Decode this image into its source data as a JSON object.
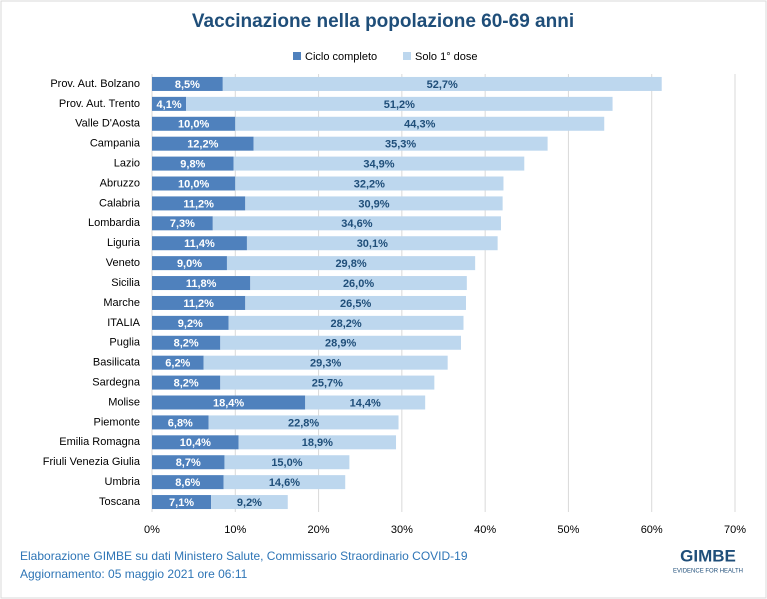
{
  "chart_data": {
    "type": "stacked-bar-horizontal",
    "title": "Vaccinazione nella popolazione 60-69 anni",
    "categories": [
      "Prov. Aut. Bolzano",
      "Prov. Aut. Trento",
      "Valle D'Aosta",
      "Campania",
      "Lazio",
      "Abruzzo",
      "Calabria",
      "Lombardia",
      "Liguria",
      "Veneto",
      "Sicilia",
      "Marche",
      "ITALIA",
      "Puglia",
      "Basilicata",
      "Sardegna",
      "Molise",
      "Piemonte",
      "Emilia Romagna",
      "Friuli Venezia Giulia",
      "Umbria",
      "Toscana"
    ],
    "series": [
      {
        "name": "Ciclo completo",
        "color": "#4f81bd",
        "values": [
          8.5,
          4.1,
          10.0,
          12.2,
          9.8,
          10.0,
          11.2,
          7.3,
          11.4,
          9.0,
          11.8,
          11.2,
          9.2,
          8.2,
          6.2,
          8.2,
          18.4,
          6.8,
          10.4,
          8.7,
          8.6,
          7.1
        ],
        "value_labels": [
          "8,5%",
          "4,1%",
          "10,0%",
          "12,2%",
          "9,8%",
          "10,0%",
          "11,2%",
          "7,3%",
          "11,4%",
          "9,0%",
          "11,8%",
          "11,2%",
          "9,2%",
          "8,2%",
          "6,2%",
          "8,2%",
          "18,4%",
          "6,8%",
          "10,4%",
          "8,7%",
          "8,6%",
          "7,1%"
        ]
      },
      {
        "name": "Solo 1° dose",
        "color": "#bdd7ee",
        "values": [
          52.7,
          51.2,
          44.3,
          35.3,
          34.9,
          32.2,
          30.9,
          34.6,
          30.1,
          29.8,
          26.0,
          26.5,
          28.2,
          28.9,
          29.3,
          25.7,
          14.4,
          22.8,
          18.9,
          15.0,
          14.6,
          9.2
        ],
        "value_labels": [
          "52,7%",
          "51,2%",
          "44,3%",
          "35,3%",
          "34,9%",
          "32,2%",
          "30,9%",
          "34,6%",
          "30,1%",
          "29,8%",
          "26,0%",
          "26,5%",
          "28,2%",
          "28,9%",
          "29,3%",
          "25,7%",
          "14,4%",
          "22,8%",
          "18,9%",
          "15,0%",
          "14,6%",
          "9,2%"
        ]
      }
    ],
    "xlim": [
      0,
      70
    ],
    "xticks": [
      {
        "value": 0,
        "label": "0%"
      },
      {
        "value": 10,
        "label": "10%"
      },
      {
        "value": 20,
        "label": "20%"
      },
      {
        "value": 30,
        "label": "30%"
      },
      {
        "value": 40,
        "label": "40%"
      },
      {
        "value": 50,
        "label": "50%"
      },
      {
        "value": 60,
        "label": "60%"
      },
      {
        "value": 70,
        "label": "70%"
      }
    ],
    "grid": true,
    "legend": "top",
    "source": "Elaborazione GIMBE su dati Ministero Salute, Commissario Straordinario COVID-19",
    "updated": "Aggiornamento: 05 maggio 2021 ore 06:11",
    "logo": "GIMBE",
    "logo_tagline": "EVIDENCE FOR HEALTH"
  }
}
